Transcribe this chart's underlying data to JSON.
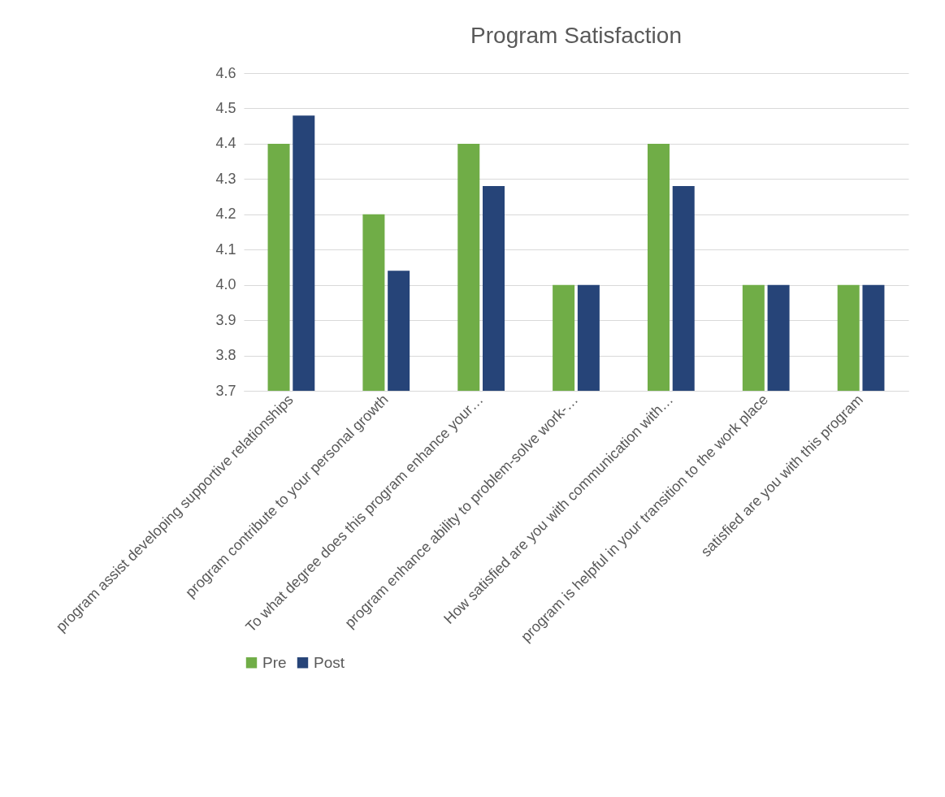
{
  "chart_data": {
    "type": "bar",
    "title": "Program Satisfaction",
    "categories": [
      "program assist developing supportive relationships",
      "program contribute to your personal growth",
      "To what degree does this program enhance your…",
      "program enhance ability to problem-solve work-…",
      "How satisfied are you with communication with…",
      "program is helpful in your transition to the work place",
      "satisfied are you with this program"
    ],
    "series": [
      {
        "name": "Pre",
        "color": "#70ad47",
        "values": [
          4.4,
          4.2,
          4.4,
          4.0,
          4.4,
          4.0,
          4.0
        ]
      },
      {
        "name": "Post",
        "color": "#264478",
        "values": [
          4.48,
          4.04,
          4.28,
          4.0,
          4.28,
          4.0,
          4.0
        ]
      }
    ],
    "ylim": [
      3.7,
      4.6
    ],
    "yticks": [
      3.7,
      3.8,
      3.9,
      {
        "value": 4.0,
        "label": "4.0"
      },
      4.1,
      4.2,
      4.3,
      4.4,
      4.5,
      4.6
    ],
    "grid": "y",
    "legend": "bottom"
  }
}
